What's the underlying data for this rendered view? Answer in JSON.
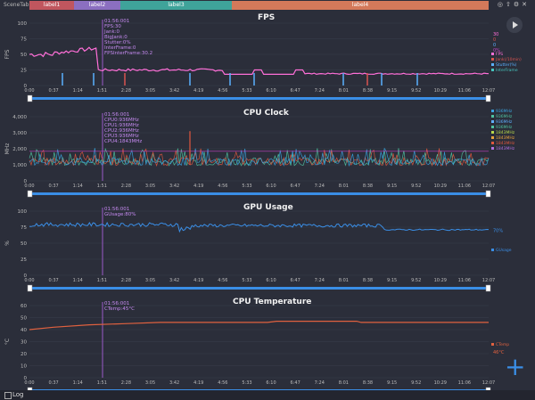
{
  "tabbar": {
    "scene_tab": "SceneTab",
    "labels": [
      {
        "text": "label1",
        "color": "#c0565e"
      },
      {
        "text": "label2",
        "color": "#8b6fc0"
      },
      {
        "text": "label3",
        "color": "#3fa39a"
      },
      {
        "text": "label4",
        "color": "#d3795a"
      }
    ]
  },
  "colors": {
    "accent": "#3a8ee6",
    "cursor": "#9b59c9",
    "background": "#2b2e3a"
  },
  "time_ticks": [
    "0:00",
    "0:37",
    "1:14",
    "1:51",
    "2:28",
    "3:05",
    "3:42",
    "4:19",
    "4:56",
    "5:33",
    "6:10",
    "6:47",
    "7:24",
    "8:01",
    "8:38",
    "9:15",
    "9:52",
    "10:29",
    "11:06",
    "12:07"
  ],
  "fps": {
    "title": "FPS",
    "ylabel": "FPS",
    "yticks": [
      "100",
      "75",
      "50",
      "25",
      "0"
    ],
    "tooltip": [
      "01:56:001",
      "FPS:30",
      "Jank:0",
      "BigJank:0",
      "Stutter:0%",
      "InterFrame:0",
      "FPSInterFrame:30.2"
    ],
    "legend_values": [
      {
        "text": "30",
        "color": "#ff6fd8"
      },
      {
        "text": "0",
        "color": "#d9534f"
      },
      {
        "text": "0",
        "color": "#5ab0ff"
      },
      {
        "text": "0%",
        "color": "#c040c0"
      }
    ],
    "legend": [
      {
        "text": "FPS",
        "color": "#ff6fd8"
      },
      {
        "text": "Jank(/10min)",
        "color": "#d9534f"
      },
      {
        "text": "Stutter(%)",
        "color": "#5ab0ff"
      },
      {
        "text": "InterFrame",
        "color": "#46c7c0"
      }
    ]
  },
  "cpu_clock": {
    "title": "CPU Clock",
    "ylabel": "MHz",
    "yticks": [
      "4,000",
      "3,000",
      "2,000",
      "1,000",
      "0"
    ],
    "tooltip": [
      "01:56:001",
      "CPU0:936MHz",
      "CPU1:936MHz",
      "CPU2:936MHz",
      "CPU3:936MHz",
      "CPU4:1843MHz"
    ],
    "legend": [
      {
        "text": "936MHz",
        "color": "#3aa3e0"
      },
      {
        "text": "936MHz",
        "color": "#4fc3a1"
      },
      {
        "text": "936MHz",
        "color": "#5fb0ff"
      },
      {
        "text": "936MHz",
        "color": "#4fc3a1"
      },
      {
        "text": "1843MHz",
        "color": "#b8d94a"
      },
      {
        "text": "1843MHz",
        "color": "#e9a23b"
      },
      {
        "text": "1843MHz",
        "color": "#e2583e"
      },
      {
        "text": "1843MHz",
        "color": "#b070e0"
      }
    ]
  },
  "gpu_usage": {
    "title": "GPU Usage",
    "ylabel": "%",
    "yticks": [
      "100",
      "75",
      "50",
      "25",
      "0"
    ],
    "tooltip": [
      "01:56:001",
      "GUsage:80%"
    ],
    "value_label": "70%",
    "legend": [
      {
        "text": "GUsage",
        "color": "#3a8ee6"
      }
    ]
  },
  "cpu_temp": {
    "title": "CPU Temperature",
    "ylabel": "°C",
    "yticks": [
      "60",
      "50",
      "40",
      "30",
      "20",
      "10",
      "0"
    ],
    "tooltip": [
      "01:56:001",
      "CTemp:45°C"
    ],
    "value_label": "46°C",
    "legend": [
      {
        "text": "CTemp",
        "color": "#e0613f"
      }
    ]
  },
  "bottombar": {
    "log": "Log"
  }
}
